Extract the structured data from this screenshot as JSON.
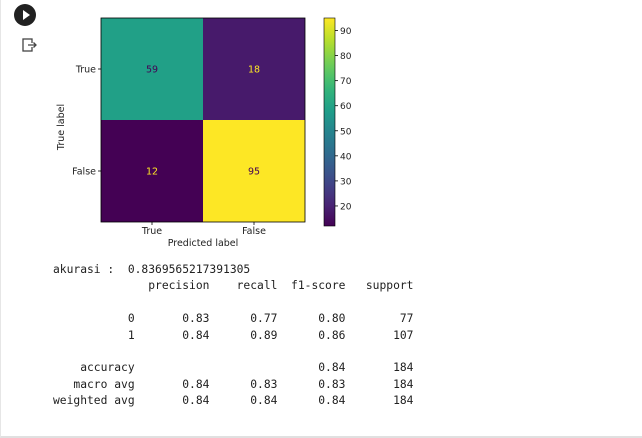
{
  "cell": {
    "run_icon": "play-circle-icon",
    "output_icon": "output-redirect-icon"
  },
  "chart_data": {
    "type": "heatmap",
    "title": "",
    "xlabel": "Predicted label",
    "ylabel": "True label",
    "x_categories": [
      "True",
      "False"
    ],
    "y_categories": [
      "True",
      "False"
    ],
    "values": [
      [
        59,
        18
      ],
      [
        12,
        95
      ]
    ],
    "colormap": "viridis",
    "colorbar": {
      "range": [
        12,
        95
      ],
      "ticks": [
        20,
        30,
        40,
        50,
        60,
        70,
        80,
        90
      ]
    },
    "colors": {
      "low": "#440154",
      "high": "#fde725",
      "text_on_dark": "#fde725",
      "text_on_light": "#440154"
    }
  },
  "report": {
    "lines": [
      "akurasi :  0.8369565217391305",
      "              precision    recall  f1-score   support",
      "",
      "           0       0.83      0.77      0.80        77",
      "           1       0.84      0.89      0.86       107",
      "",
      "    accuracy                           0.84       184",
      "   macro avg       0.84      0.83      0.83       184",
      "weighted avg       0.84      0.84      0.84       184"
    ]
  }
}
